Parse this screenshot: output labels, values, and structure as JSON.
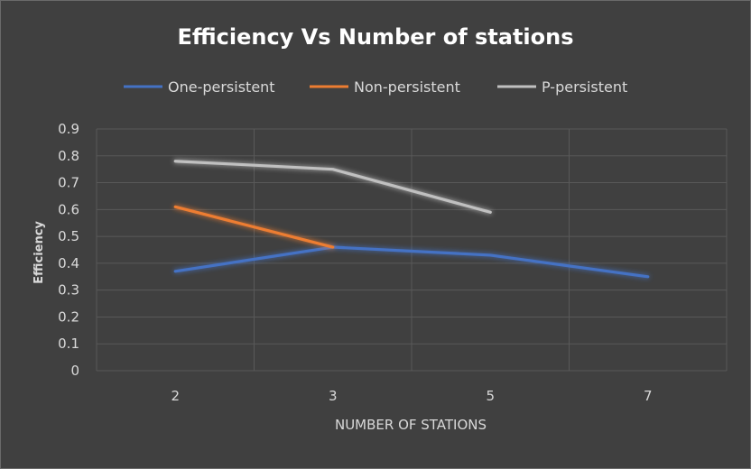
{
  "chart_data": {
    "type": "line",
    "title": "Efficiency Vs Number of stations",
    "xlabel": "NUMBER OF STATIONS",
    "ylabel": "Efficiency",
    "categories": [
      "2",
      "3",
      "5",
      "7"
    ],
    "y_ticks": [
      "0",
      "0.1",
      "0.2",
      "0.3",
      "0.4",
      "0.5",
      "0.6",
      "0.7",
      "0.8",
      "0.9"
    ],
    "ylim": [
      0,
      0.9
    ],
    "grid": true,
    "legend_position": "top",
    "series": [
      {
        "name": "One-persistent",
        "color": "#4472c4",
        "values": [
          0.37,
          0.46,
          0.43,
          0.35
        ]
      },
      {
        "name": "Non-persistent",
        "color": "#ed7d31",
        "values": [
          0.61,
          0.46,
          null,
          null
        ]
      },
      {
        "name": "P-persistent",
        "color": "#c0c0c0",
        "values": [
          0.78,
          0.75,
          0.59,
          null
        ]
      }
    ]
  }
}
